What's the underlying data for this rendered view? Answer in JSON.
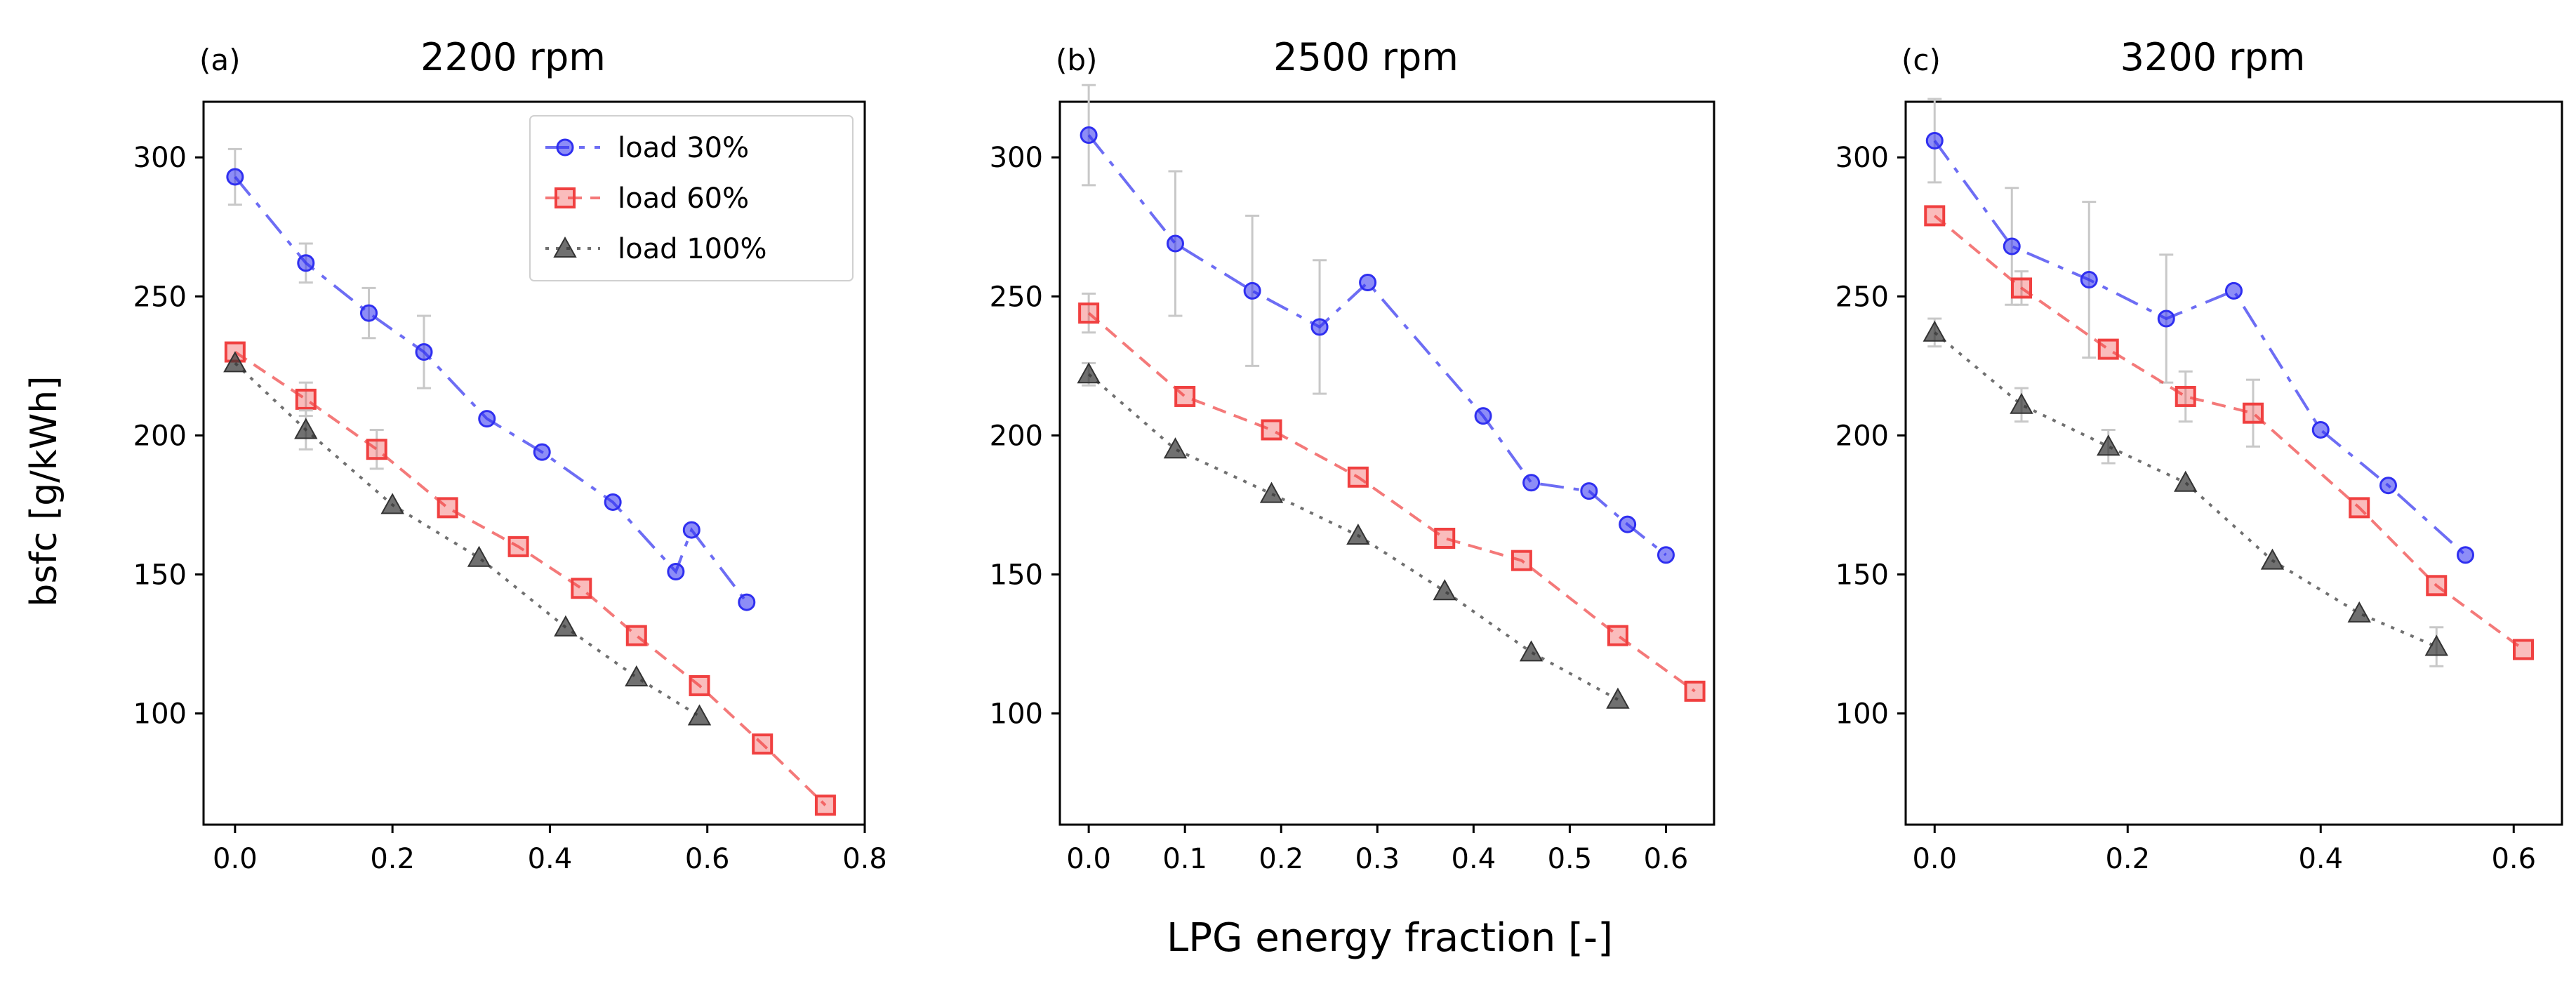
{
  "figure": {
    "ylabel": "bsfc [g/kWh]",
    "xlabel": "LPG energy fraction [-]"
  },
  "colors": {
    "load30": "#2f2ff0",
    "load60": "#f04040",
    "load100": "#333333",
    "errorbar": "#c8c8c8"
  },
  "chart_data": [
    {
      "type": "line",
      "panel_label": "(a)",
      "title": "2200 rpm",
      "xlabel": "",
      "ylabel": "bsfc [g/kWh]",
      "xlim": [
        -0.04,
        0.8
      ],
      "ylim": [
        60,
        320
      ],
      "xticks": [
        0.0,
        0.2,
        0.4,
        0.6,
        0.8
      ],
      "xtick_labels": [
        "0.0",
        "0.2",
        "0.4",
        "0.6",
        "0.8"
      ],
      "yticks": [
        100,
        150,
        200,
        250,
        300
      ],
      "ytick_labels": [
        "100",
        "150",
        "200",
        "250",
        "300"
      ],
      "legend": {
        "location": "top-right",
        "entries": [
          "load 30%",
          "load 60%",
          "load 100%"
        ]
      },
      "series": [
        {
          "name": "load 30%",
          "marker": "circle",
          "linestyle": "dashdot",
          "x": [
            0.0,
            0.09,
            0.17,
            0.24,
            0.32,
            0.39,
            0.48,
            0.56,
            0.58,
            0.65
          ],
          "y": [
            293,
            262,
            244,
            230,
            206,
            194,
            176,
            151,
            166,
            140
          ],
          "err": [
            10,
            7,
            9,
            13,
            0,
            0,
            0,
            0,
            0,
            0
          ]
        },
        {
          "name": "load 60%",
          "marker": "square",
          "linestyle": "dashed",
          "x": [
            0.0,
            0.09,
            0.18,
            0.27,
            0.36,
            0.44,
            0.51,
            0.59,
            0.67,
            0.75
          ],
          "y": [
            230,
            213,
            195,
            174,
            160,
            145,
            128,
            110,
            89,
            67
          ],
          "err": [
            0,
            6,
            7,
            0,
            0,
            0,
            0,
            0,
            0,
            0
          ]
        },
        {
          "name": "load 100%",
          "marker": "triangle",
          "linestyle": "dotted",
          "x": [
            0.0,
            0.09,
            0.2,
            0.31,
            0.42,
            0.51,
            0.59
          ],
          "y": [
            226,
            202,
            175,
            156,
            131,
            113,
            99
          ],
          "err": [
            0,
            7,
            0,
            0,
            0,
            0,
            0
          ]
        }
      ]
    },
    {
      "type": "line",
      "panel_label": "(b)",
      "title": "2500 rpm",
      "xlabel": "LPG energy fraction [-]",
      "ylabel": "",
      "xlim": [
        -0.03,
        0.65
      ],
      "ylim": [
        60,
        320
      ],
      "xticks": [
        0.0,
        0.1,
        0.2,
        0.3,
        0.4,
        0.5,
        0.6
      ],
      "xtick_labels": [
        "0.0",
        "0.1",
        "0.2",
        "0.3",
        "0.4",
        "0.5",
        "0.6"
      ],
      "yticks": [
        100,
        150,
        200,
        250,
        300
      ],
      "ytick_labels": [
        "100",
        "150",
        "200",
        "250",
        "300"
      ],
      "series": [
        {
          "name": "load 30%",
          "marker": "circle",
          "linestyle": "dashdot",
          "x": [
            0.0,
            0.09,
            0.17,
            0.24,
            0.29,
            0.41,
            0.46,
            0.52,
            0.56,
            0.6
          ],
          "y": [
            308,
            269,
            252,
            239,
            255,
            207,
            183,
            180,
            168,
            157
          ],
          "err": [
            18,
            26,
            27,
            24,
            0,
            0,
            0,
            0,
            0,
            0
          ]
        },
        {
          "name": "load 60%",
          "marker": "square",
          "linestyle": "dashed",
          "x": [
            0.0,
            0.1,
            0.19,
            0.28,
            0.37,
            0.45,
            0.55,
            0.63
          ],
          "y": [
            244,
            214,
            202,
            185,
            163,
            155,
            128,
            108
          ],
          "err": [
            7,
            0,
            0,
            0,
            0,
            0,
            0,
            0
          ]
        },
        {
          "name": "load 100%",
          "marker": "triangle",
          "linestyle": "dotted",
          "x": [
            0.0,
            0.09,
            0.19,
            0.28,
            0.37,
            0.46,
            0.55
          ],
          "y": [
            222,
            195,
            179,
            164,
            144,
            122,
            105
          ],
          "err": [
            4,
            0,
            0,
            0,
            0,
            0,
            0
          ]
        }
      ]
    },
    {
      "type": "line",
      "panel_label": "(c)",
      "title": "3200 rpm",
      "xlabel": "",
      "ylabel": "",
      "xlim": [
        -0.03,
        0.65
      ],
      "ylim": [
        60,
        320
      ],
      "xticks": [
        0.0,
        0.2,
        0.4,
        0.6
      ],
      "xtick_labels": [
        "0.0",
        "0.2",
        "0.4",
        "0.6"
      ],
      "yticks": [
        100,
        150,
        200,
        250,
        300
      ],
      "ytick_labels": [
        "100",
        "150",
        "200",
        "250",
        "300"
      ],
      "series": [
        {
          "name": "load 30%",
          "marker": "circle",
          "linestyle": "dashdot",
          "x": [
            0.0,
            0.08,
            0.16,
            0.24,
            0.31,
            0.4,
            0.47,
            0.55
          ],
          "y": [
            306,
            268,
            256,
            242,
            252,
            202,
            182,
            157
          ],
          "err": [
            15,
            21,
            28,
            23,
            0,
            0,
            0,
            0
          ]
        },
        {
          "name": "load 60%",
          "marker": "square",
          "linestyle": "dashed",
          "x": [
            0.0,
            0.09,
            0.18,
            0.26,
            0.33,
            0.44,
            0.52,
            0.61
          ],
          "y": [
            279,
            253,
            231,
            214,
            208,
            174,
            146,
            123
          ],
          "err": [
            0,
            6,
            0,
            9,
            12,
            0,
            0,
            0
          ]
        },
        {
          "name": "load 100%",
          "marker": "triangle",
          "linestyle": "dotted",
          "x": [
            0.0,
            0.09,
            0.18,
            0.26,
            0.35,
            0.44,
            0.52
          ],
          "y": [
            237,
            211,
            196,
            183,
            155,
            136,
            124
          ],
          "err": [
            5,
            6,
            6,
            0,
            0,
            0,
            7
          ]
        }
      ]
    }
  ]
}
